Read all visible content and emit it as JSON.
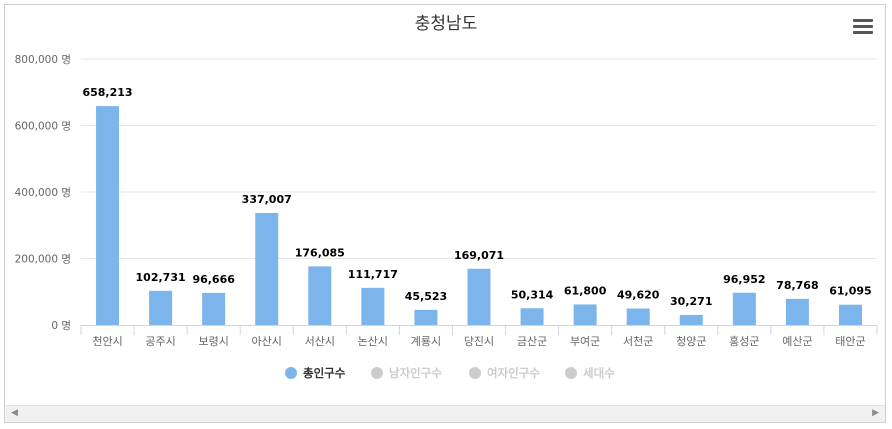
{
  "chart_data": {
    "type": "bar",
    "title": "충청남도",
    "categories": [
      "천안시",
      "공주시",
      "보령시",
      "아산시",
      "서산시",
      "논산시",
      "계룡시",
      "당진시",
      "금산군",
      "부여군",
      "서천군",
      "청양군",
      "홍성군",
      "예산군",
      "태안군"
    ],
    "series": [
      {
        "name": "총인구수",
        "values": [
          658213,
          102731,
          96666,
          337007,
          176085,
          111717,
          45523,
          169071,
          50314,
          61800,
          49620,
          30271,
          96952,
          78768,
          61095
        ],
        "visible": true
      }
    ],
    "yticks": [
      {
        "value": 0,
        "label": "0 명"
      },
      {
        "value": 200000,
        "label": "200,000 명"
      },
      {
        "value": 400000,
        "label": "400,000 명"
      },
      {
        "value": 600000,
        "label": "600,000 명"
      },
      {
        "value": 800000,
        "label": "800,000 명"
      }
    ],
    "ylim": [
      0,
      800000
    ],
    "grid": true,
    "legend_placement": "bottom-center",
    "legend": [
      {
        "name": "총인구수",
        "active": true
      },
      {
        "name": "남자인구수",
        "active": false
      },
      {
        "name": "여자인구수",
        "active": false
      },
      {
        "name": "세대수",
        "active": false
      }
    ],
    "colors": {
      "bar": "#7cb5ec",
      "inactive": "#cccccc",
      "grid": "#e6e6e6",
      "axis": "#ccd6eb",
      "text": "#333333",
      "tick": "#666666"
    }
  }
}
